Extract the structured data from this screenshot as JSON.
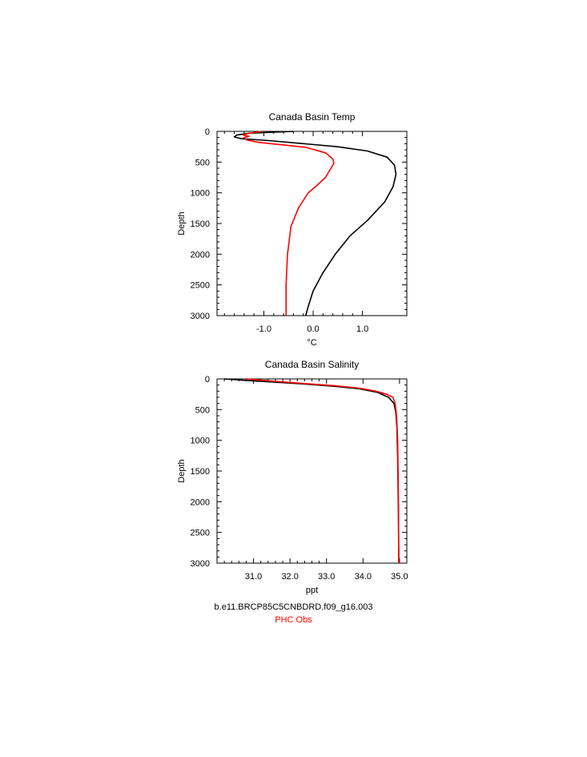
{
  "colors": {
    "model": "#000000",
    "obs": "#ff0000",
    "axis": "#000000"
  },
  "legend": {
    "model_label": "b.e11.BRCP85C5CNBDRD.f09_g16.003",
    "obs_label": "PHC Obs"
  },
  "chart_data": [
    {
      "type": "line",
      "title": "Canada Basin Temp",
      "xlabel": "°C",
      "ylabel": "Depth",
      "xlim": [
        -1.95,
        1.9
      ],
      "ylim": [
        3000,
        0
      ],
      "y_inverted": true,
      "xticks": [
        -1.0,
        0.0,
        1.0
      ],
      "xtick_labels": [
        "-1.0",
        "0.0",
        "1.0"
      ],
      "yticks": [
        0,
        500,
        1000,
        1500,
        2000,
        2500,
        3000
      ],
      "ytick_labels": [
        "0",
        "500",
        "1000",
        "1500",
        "2000",
        "2500",
        "3000"
      ],
      "series": [
        {
          "key": "model",
          "x": [
            -0.4,
            -1.3,
            -1.55,
            -1.6,
            -1.45,
            -0.9,
            -0.2,
            0.5,
            1.1,
            1.5,
            1.65,
            1.68,
            1.62,
            1.45,
            1.1,
            0.75,
            0.45,
            0.2,
            0.0,
            -0.1,
            -0.15
          ],
          "y": [
            0,
            30,
            60,
            90,
            120,
            150,
            200,
            250,
            320,
            420,
            550,
            700,
            900,
            1150,
            1450,
            1700,
            2000,
            2300,
            2600,
            2850,
            3000
          ]
        },
        {
          "key": "obs",
          "x": [
            -1.05,
            -1.2,
            -1.35,
            -1.42,
            -1.3,
            -1.4,
            -1.35,
            -1.1,
            -0.6,
            -0.15,
            0.25,
            0.4,
            0.42,
            0.25,
            0.05,
            -0.1,
            -0.3,
            -0.45,
            -0.52,
            -0.55,
            -0.55
          ],
          "y": [
            0,
            20,
            40,
            60,
            80,
            100,
            140,
            180,
            220,
            260,
            350,
            450,
            520,
            750,
            900,
            1000,
            1250,
            1550,
            2000,
            2500,
            3000
          ]
        }
      ]
    },
    {
      "type": "line",
      "title": "Canada Basin Salinity",
      "xlabel": "ppt",
      "ylabel": "Depth",
      "xlim": [
        30.0,
        35.2
      ],
      "ylim": [
        3000,
        0
      ],
      "y_inverted": true,
      "xticks": [
        31.0,
        32.0,
        33.0,
        34.0,
        35.0
      ],
      "xtick_labels": [
        "31.0",
        "32.0",
        "33.0",
        "34.0",
        "35.0"
      ],
      "yticks": [
        0,
        500,
        1000,
        1500,
        2000,
        2500,
        3000
      ],
      "ytick_labels": [
        "0",
        "500",
        "1000",
        "1500",
        "2000",
        "2500",
        "3000"
      ],
      "series": [
        {
          "key": "model",
          "x": [
            30.2,
            30.8,
            31.5,
            32.3,
            33.2,
            33.9,
            34.4,
            34.7,
            34.85,
            34.9,
            34.93,
            34.95,
            34.97,
            34.98
          ],
          "y": [
            0,
            25,
            50,
            80,
            120,
            160,
            220,
            300,
            400,
            550,
            800,
            1300,
            2200,
            3000
          ]
        },
        {
          "key": "obs",
          "x": [
            30.8,
            31.6,
            32.4,
            33.2,
            33.9,
            34.35,
            34.65,
            34.82,
            34.88,
            34.92,
            34.95,
            34.97,
            34.98
          ],
          "y": [
            0,
            40,
            75,
            110,
            150,
            200,
            250,
            300,
            400,
            600,
            1000,
            2000,
            3000
          ]
        }
      ]
    }
  ]
}
